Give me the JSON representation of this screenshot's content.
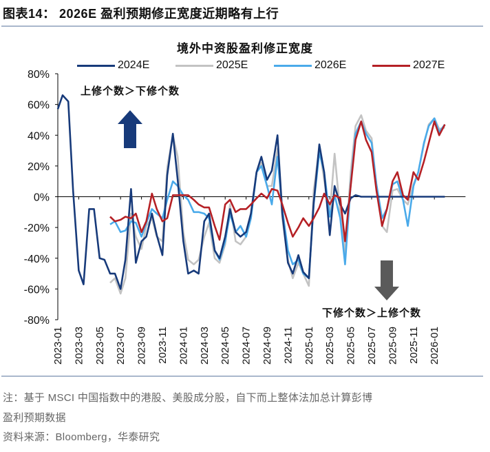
{
  "figure_title": "图表14： 2026E 盈利预期修正宽度近期略有上行",
  "notes": [
    "注：基于 MSCI 中国指数中的港股、美股成分股，自下而上整体法加总计算彭博",
    "盈利预期数据",
    "资料来源：Bloomberg，华泰研究"
  ],
  "chart_data": {
    "type": "line",
    "title": "境外中资股盈利修正宽度",
    "xlabel": "",
    "ylabel": "",
    "ylim": [
      -80,
      80
    ],
    "y_ticks": [
      "80%",
      "60%",
      "40%",
      "20%",
      "0%",
      "-20%",
      "-40%",
      "-60%",
      "-80%"
    ],
    "x_ticks": [
      "2023-01",
      "2023-03",
      "2023-05",
      "2023-07",
      "2023-09",
      "2023-11",
      "2024-01",
      "2024-03",
      "2024-05",
      "2024-07",
      "2024-09",
      "2024-11",
      "2025-01",
      "2025-03",
      "2025-05",
      "2025-07",
      "2025-09",
      "2025-11",
      "2026-01"
    ],
    "grid": false,
    "legend_position": "top",
    "annotations": {
      "upper": "上修个数＞下修个数",
      "lower": "下修个数＞上修个数",
      "up_arrow_color": "#173a7a",
      "down_arrow_color": "#5a5a5a"
    },
    "x": [
      "2023-01-01",
      "2023-01-15",
      "2023-02-01",
      "2023-02-15",
      "2023-03-01",
      "2023-03-15",
      "2023-04-01",
      "2023-04-15",
      "2023-05-01",
      "2023-05-15",
      "2023-06-01",
      "2023-06-15",
      "2023-07-01",
      "2023-07-15",
      "2023-08-01",
      "2023-08-15",
      "2023-09-01",
      "2023-09-15",
      "2023-10-01",
      "2023-10-15",
      "2023-11-01",
      "2023-11-15",
      "2023-12-01",
      "2023-12-15",
      "2024-01-01",
      "2024-01-15",
      "2024-02-01",
      "2024-02-15",
      "2024-03-01",
      "2024-03-15",
      "2024-04-01",
      "2024-04-15",
      "2024-05-01",
      "2024-05-15",
      "2024-06-01",
      "2024-06-15",
      "2024-07-01",
      "2024-07-15",
      "2024-08-01",
      "2024-08-15",
      "2024-09-01",
      "2024-09-15",
      "2024-10-01",
      "2024-10-15",
      "2024-11-01",
      "2024-11-15",
      "2024-12-01",
      "2024-12-15",
      "2025-01-01",
      "2025-01-15",
      "2025-02-01",
      "2025-02-15",
      "2025-03-01",
      "2025-03-15",
      "2025-04-01",
      "2025-04-15",
      "2025-05-01",
      "2025-05-15",
      "2025-06-01",
      "2025-06-15",
      "2025-07-01",
      "2025-07-15",
      "2025-08-01",
      "2025-08-15",
      "2025-09-01",
      "2025-09-15",
      "2025-10-01",
      "2025-10-15",
      "2025-11-01",
      "2025-11-15",
      "2025-12-01",
      "2025-12-15",
      "2026-01-01",
      "2026-01-15",
      "2026-02-01"
    ],
    "y_unit": "%",
    "series": [
      {
        "name": "2024E",
        "color": "#173a7a",
        "values": [
          57,
          66,
          62,
          4,
          -48,
          -57,
          -8,
          -8,
          -40,
          -41,
          -50,
          -50,
          -60,
          -41,
          5,
          -43,
          -29,
          -26,
          -11,
          -25,
          -38,
          14,
          41,
          11,
          -29,
          -50,
          -48,
          -50,
          -16,
          -11,
          -35,
          -40,
          -26,
          -8,
          -23,
          -26,
          -23,
          -11,
          16,
          26,
          11,
          17,
          40,
          -11,
          -43,
          -50,
          -38,
          -49,
          -53,
          -4,
          34,
          16,
          -25,
          7,
          -5,
          -11,
          -1,
          1,
          0,
          0,
          0,
          0,
          0,
          0,
          0,
          0,
          0,
          0,
          0,
          0,
          0,
          0,
          0,
          0,
          0
        ]
      },
      {
        "name": "2025E",
        "color": "#c3c3c3",
        "values": [
          null,
          null,
          null,
          null,
          null,
          null,
          null,
          null,
          null,
          null,
          -56,
          -53,
          -63,
          -53,
          -11,
          -26,
          -34,
          -19,
          -14,
          -26,
          -29,
          19,
          40,
          26,
          -23,
          -41,
          -44,
          -41,
          -26,
          -17,
          -40,
          -43,
          -31,
          -5,
          -29,
          -31,
          -26,
          -14,
          16,
          22,
          7,
          7,
          31,
          -14,
          -41,
          -53,
          -43,
          -50,
          -58,
          4,
          32,
          11,
          -11,
          28,
          -11,
          -37,
          16,
          46,
          53,
          43,
          38,
          7,
          -19,
          -23,
          4,
          5,
          -2,
          -5,
          8,
          16,
          34,
          47,
          51,
          44,
          45
        ]
      },
      {
        "name": "2026E",
        "color": "#4aaaea",
        "values": [
          null,
          null,
          null,
          null,
          null,
          null,
          null,
          null,
          null,
          null,
          -18,
          -16,
          -23,
          -22,
          -16,
          -17,
          -26,
          -17,
          -8,
          -11,
          -14,
          -2,
          10,
          7,
          1,
          -2,
          -10,
          -10,
          -11,
          -14,
          -35,
          -41,
          -29,
          -11,
          -23,
          -19,
          -26,
          -14,
          16,
          20,
          7,
          -5,
          26,
          -8,
          -35,
          -44,
          -41,
          -50,
          -53,
          -5,
          29,
          16,
          -13,
          1,
          -14,
          -44,
          8,
          41,
          49,
          41,
          35,
          8,
          -14,
          -8,
          8,
          10,
          -2,
          -19,
          7,
          16,
          35,
          46,
          51,
          42,
          47
        ]
      },
      {
        "name": "2027E",
        "color": "#b52025",
        "values": [
          null,
          null,
          null,
          null,
          null,
          null,
          null,
          null,
          null,
          null,
          -13,
          -16,
          -15,
          -13,
          -14,
          -11,
          -23,
          -16,
          2,
          -8,
          -16,
          -14,
          1,
          1,
          1,
          1,
          -2,
          -5,
          -7,
          -7,
          -19,
          -28,
          -5,
          -2,
          -10,
          -8,
          -8,
          -5,
          -1,
          2,
          -1,
          5,
          4,
          -5,
          -17,
          -26,
          -20,
          -14,
          -19,
          -14,
          -7,
          2,
          -5,
          1,
          -1,
          -29,
          7,
          37,
          49,
          37,
          29,
          4,
          -19,
          -8,
          10,
          16,
          1,
          -2,
          16,
          11,
          23,
          35,
          49,
          40,
          47
        ]
      }
    ]
  }
}
